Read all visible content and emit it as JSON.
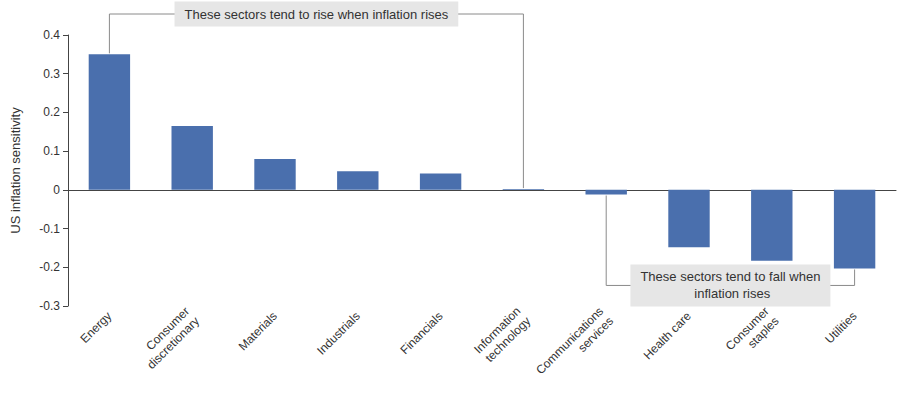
{
  "chart_data": {
    "type": "bar",
    "categories": [
      "Energy",
      "Consumer discretionary",
      "Materials",
      "Industrials",
      "Financials",
      "Information technology",
      "Communications services",
      "Health care",
      "Consumer staples",
      "Utilities"
    ],
    "values": [
      0.35,
      0.165,
      0.08,
      0.048,
      0.042,
      0.002,
      -0.012,
      -0.148,
      -0.183,
      -0.203
    ],
    "color": "#4a6fad",
    "y_label": "US inflation sensitivity",
    "ylim": [
      -0.3,
      0.4
    ],
    "yticks": [
      -0.3,
      -0.2,
      -0.1,
      0,
      0.1,
      0.2,
      0.3,
      0.4
    ],
    "grid": false,
    "annotations": [
      {
        "text": "These sectors tend to rise when inflation rises",
        "from": "Energy",
        "to": "Information technology"
      },
      {
        "text": "These sectors tend to fall when inflation rises",
        "from": "Communications services",
        "to": "Utilities"
      }
    ]
  }
}
